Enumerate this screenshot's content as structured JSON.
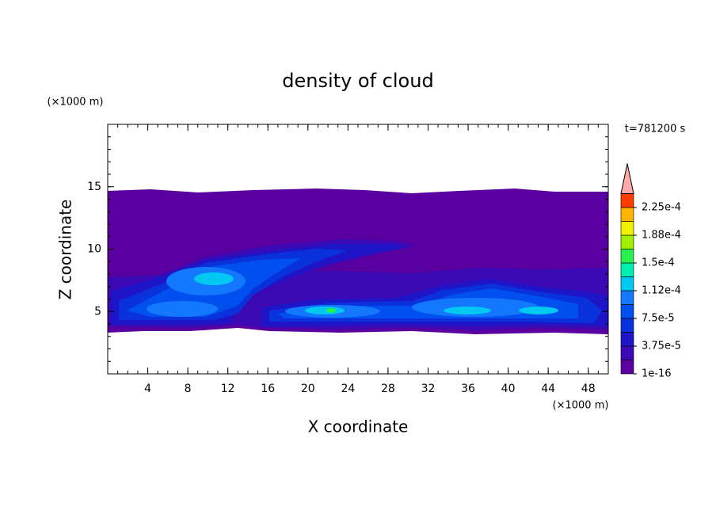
{
  "chart_data": {
    "type": "contour",
    "title": "density of cloud",
    "x_label": "X coordinate",
    "y_label": "Z coordinate",
    "x_unit": "(×1000 m)",
    "y_unit": "(×1000 m)",
    "time_label": "t=781200 s",
    "xlim": [
      0,
      50
    ],
    "ylim": [
      0,
      20
    ],
    "xticks": [
      4,
      8,
      12,
      16,
      20,
      24,
      28,
      32,
      36,
      40,
      44,
      48
    ],
    "yticks": [
      5,
      10,
      15
    ],
    "colorbar": {
      "lim": [
        0,
        0.00024375
      ],
      "colors": [
        "#5a00a0",
        "#3c0ab4",
        "#1e14c8",
        "#0a32dc",
        "#0050f0",
        "#1478ff",
        "#00c8f0",
        "#00f0b4",
        "#28f050",
        "#a0f000",
        "#f0f000",
        "#ffb400",
        "#ff3c00"
      ],
      "extend_color": "#ffaaaa",
      "ticks": [
        {
          "value": 1e-16,
          "label": "1e-16"
        },
        {
          "value": 3.75e-05,
          "label": "3.75e-5"
        },
        {
          "value": 7.5e-05,
          "label": "7.5e-5"
        },
        {
          "value": 0.0001125,
          "label": "1.12e-4"
        },
        {
          "value": 0.00015,
          "label": "1.5e-4"
        },
        {
          "value": 0.0001875,
          "label": "1.88e-4"
        },
        {
          "value": 0.000225,
          "label": "2.25e-4"
        }
      ]
    }
  }
}
